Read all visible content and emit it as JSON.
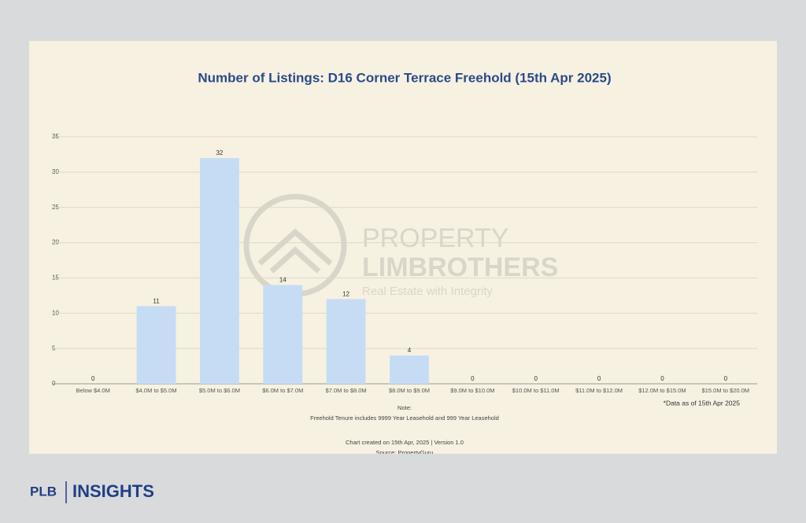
{
  "chart_data": {
    "type": "bar",
    "title": "Number of Listings: D16 Corner Terrace Freehold (15th Apr 2025)",
    "categories": [
      "Below $4.0M",
      "$4.0M to $5.0M",
      "$5.0M to $6.0M",
      "$6.0M to $7.0M",
      "$7.0M to $8.0M",
      "$8.0M to $9.0M",
      "$9.0M to $10.0M",
      "$10.0M to $11.0M",
      "$11.0M to $12.0M",
      "$12.0M to $15.0M",
      "$15.0M to $20.0M"
    ],
    "values": [
      0,
      11,
      32,
      14,
      12,
      4,
      0,
      0,
      0,
      0,
      0
    ],
    "color": "#c6dcf5",
    "ylim": [
      0,
      35
    ],
    "yticks": [
      0,
      5,
      10,
      15,
      20,
      25,
      30,
      35
    ],
    "grid": true,
    "note_title": "Note:",
    "note": "Freehold Tenure includes 9999 Year Leasehold and 999 Year Leasehold",
    "data_note": "*Data as of 15th Apr 2025",
    "footer_created": "Chart created on 15th Apr, 2025 | Version 1.0",
    "footer_source": "Source: PropertyGuru"
  },
  "watermark": {
    "line1": "PROPERTY",
    "line2": "LIMBROTHERS",
    "tagline": "Real Estate with Integrity"
  },
  "brand": {
    "left": "PLB",
    "right": "INSIGHTS"
  }
}
